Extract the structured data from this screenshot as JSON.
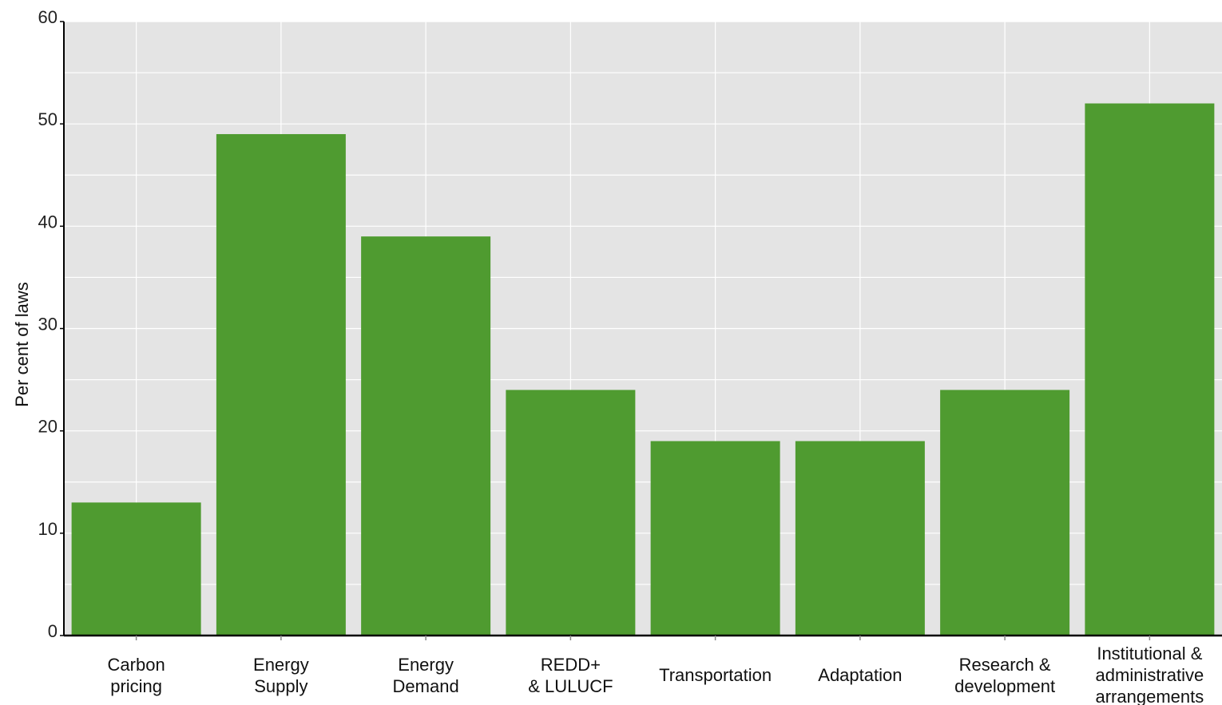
{
  "chart_data": {
    "type": "bar",
    "title": "",
    "xlabel": "",
    "ylabel": "Per cent of laws",
    "ylim": [
      0,
      60
    ],
    "yticks": [
      0,
      10,
      20,
      30,
      40,
      50,
      60
    ],
    "grid": true,
    "categories": [
      [
        "Carbon",
        "pricing"
      ],
      [
        "Energy",
        "Supply"
      ],
      [
        "Energy",
        "Demand"
      ],
      [
        "REDD+",
        "& LULUCF"
      ],
      [
        "Transportation"
      ],
      [
        "Adaptation"
      ],
      [
        "Research &",
        "development"
      ],
      [
        "Institutional &",
        "administrative",
        "arrangements"
      ]
    ],
    "values": [
      13,
      49,
      39,
      24,
      19,
      19,
      24,
      52
    ],
    "colors": {
      "bar": "#4f9b30",
      "plot_background": "#e4e4e4",
      "grid": "#ffffff",
      "axis": "#000000"
    }
  }
}
